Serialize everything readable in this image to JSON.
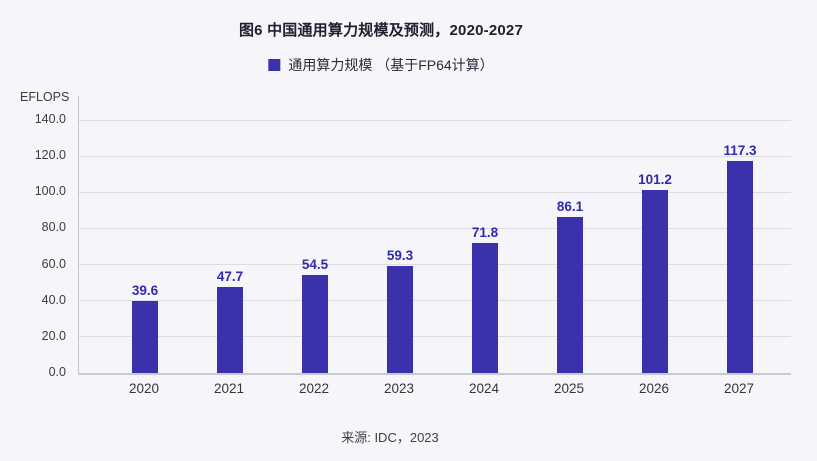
{
  "header": {
    "title": "图6 中国通用算力规模及预测，2020-2027"
  },
  "legend": {
    "label": "通用算力规模 （基于FP64计算）"
  },
  "footer": {
    "source": "来源: IDC，2023"
  },
  "colors": {
    "background": "#f5f5fa",
    "bar": "#3a32ac",
    "value_label": "#2f2ba8",
    "gridline": "#dcdce2",
    "axis_line": "#c9c9d0"
  },
  "chart_data": {
    "type": "bar",
    "title": "图6 中国通用算力规模及预测，2020-2027",
    "categories": [
      "2020",
      "2021",
      "2022",
      "2023",
      "2024",
      "2025",
      "2026",
      "2027"
    ],
    "series": [
      {
        "name": "通用算力规模 （基于FP64计算）",
        "values": [
          39.6,
          47.7,
          54.5,
          59.3,
          71.8,
          86.1,
          101.2,
          117.3
        ]
      }
    ],
    "value_labels": [
      "39.6",
      "47.7",
      "54.5",
      "59.3",
      "71.8",
      "86.1",
      "101.2",
      "117.3"
    ],
    "xlabel": "",
    "ylabel": "EFLOPS",
    "ylim": [
      0,
      140
    ],
    "ytick_step": 20,
    "ytick_labels": [
      "0.0",
      "20.0",
      "40.0",
      "60.0",
      "80.0",
      "100.0",
      "120.0",
      "140.0"
    ],
    "grid": true,
    "legend_position": "top",
    "source": "来源: IDC，2023"
  }
}
